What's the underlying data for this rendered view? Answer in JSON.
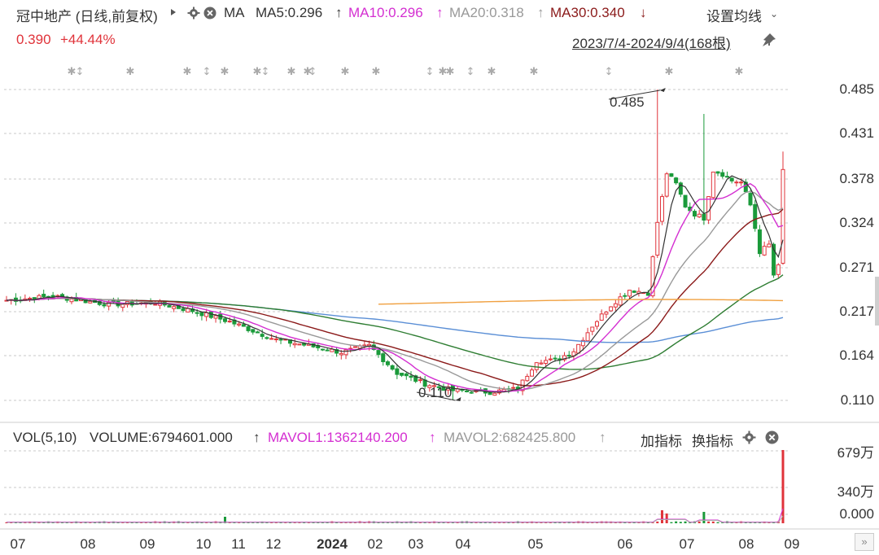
{
  "header": {
    "title": "冠中地产 (日线,前复权)",
    "play_icon": "play-triangle-icon",
    "ma_label": "MA",
    "ma5": "MA5:0.296",
    "ma10": "MA10:0.296",
    "ma20": "MA20:0.318",
    "ma30": "MA30:0.340",
    "settings_label": "设置均线",
    "price": "0.390",
    "change": "+44.44%",
    "date_range": "2023/7/4-2024/9/4(168根)"
  },
  "volume_header": {
    "vol_label": "VOL(5,10)",
    "volume": "VOLUME:6794601.000",
    "mavol1": "MAVOL1:1362140.200",
    "mavol2": "MAVOL2:682425.800",
    "add_indicator": "加指标",
    "switch_indicator": "换指标"
  },
  "colors": {
    "up": "#e0333a",
    "down": "#1a9a3a",
    "ma5": "#333333",
    "ma10": "#d42fd1",
    "ma20": "#999999",
    "ma30": "#8b1a1a",
    "ma60": "#2e7d32",
    "ma120": "#5b8fd6",
    "ma250": "#f0a040"
  },
  "chart_data": {
    "type": "candlestick",
    "y_ticks": [
      "0.485",
      "0.431",
      "0.378",
      "0.324",
      "0.271",
      "0.217",
      "0.164",
      "0.110"
    ],
    "ylim": [
      0.103,
      0.496
    ],
    "x_ticks": [
      "07",
      "08",
      "09",
      "10",
      "11",
      "12",
      "2024",
      "02",
      "03",
      "04",
      "05",
      "06",
      "07",
      "08",
      "09"
    ],
    "annotations": [
      {
        "label": "0.485",
        "value": 0.485
      },
      {
        "label": "0.110",
        "value": 0.11
      }
    ],
    "volume_ticks": [
      "679万",
      "340万",
      "0.000"
    ],
    "volume_max_label": "679万"
  }
}
